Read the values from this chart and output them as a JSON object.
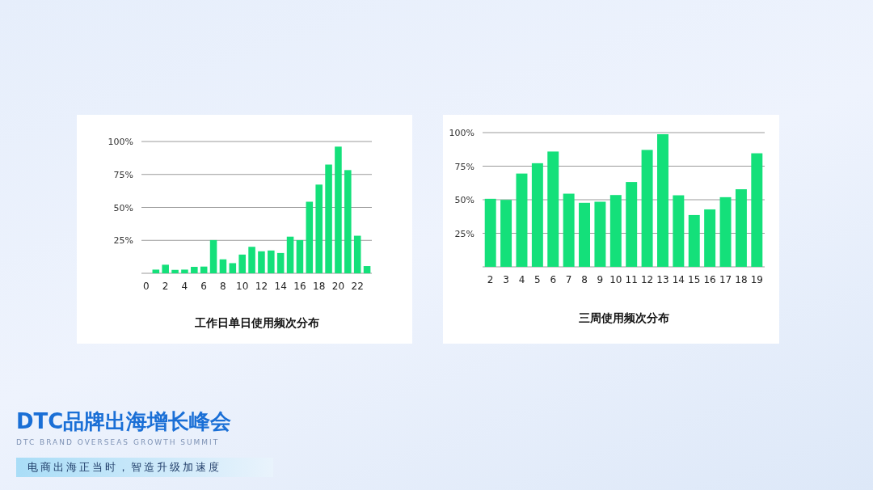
{
  "chart_data": [
    {
      "type": "bar",
      "title": "工作日单日使用频次分布",
      "categories": [
        "0",
        null,
        "2",
        null,
        "4",
        null,
        "6",
        null,
        "8",
        null,
        "10",
        null,
        "12",
        null,
        "14",
        null,
        "16",
        null,
        "18",
        null,
        "20",
        null,
        "22",
        null
      ],
      "series": [
        {
          "color": "#14e07a",
          "values": [
            0,
            2.8,
            6.5,
            2.6,
            2.8,
            4.9,
            5.1,
            25.2,
            10.6,
            7.7,
            14.2,
            20.1,
            16.7,
            17.3,
            15.4,
            27.8,
            25.2,
            54.3,
            67.3,
            82.5,
            96.1,
            78.3,
            28.5,
            5.5
          ]
        }
      ],
      "ylim": [
        0,
        100
      ],
      "yticks": [
        {
          "value": 25,
          "label": "25%"
        },
        {
          "value": 50,
          "label": "50%"
        },
        {
          "value": 75,
          "label": "75%"
        },
        {
          "value": 100,
          "label": "100%"
        }
      ],
      "grid": "y",
      "annotations": [
        "DTC品牌出海增长峰会",
        "DTC BRAND OVERSEAS GROWTH SUMMIT",
        "电商出海正当时，智造升级加速度"
      ]
    },
    {
      "type": "bar",
      "title": "三周使用频次分布",
      "categories": [
        "2",
        "3",
        "4",
        "5",
        "6",
        "7",
        "8",
        "9",
        "10",
        "11",
        "12",
        "13",
        "14",
        "15",
        "16",
        "17",
        "18",
        "19"
      ],
      "series": [
        {
          "color": "#14e07a",
          "values": [
            50.7,
            49.9,
            69.5,
            77.2,
            85.9,
            54.5,
            47.7,
            48.5,
            53.5,
            63.2,
            87.1,
            98.8,
            53.3,
            38.6,
            42.8,
            51.9,
            57.8,
            84.6
          ]
        }
      ],
      "ylim": [
        0,
        100
      ],
      "yticks": [
        {
          "value": 25,
          "label": "25%"
        },
        {
          "value": 50,
          "label": "50%"
        },
        {
          "value": 75,
          "label": "75%"
        },
        {
          "value": 100,
          "label": "100%"
        }
      ],
      "grid": "y"
    }
  ]
}
